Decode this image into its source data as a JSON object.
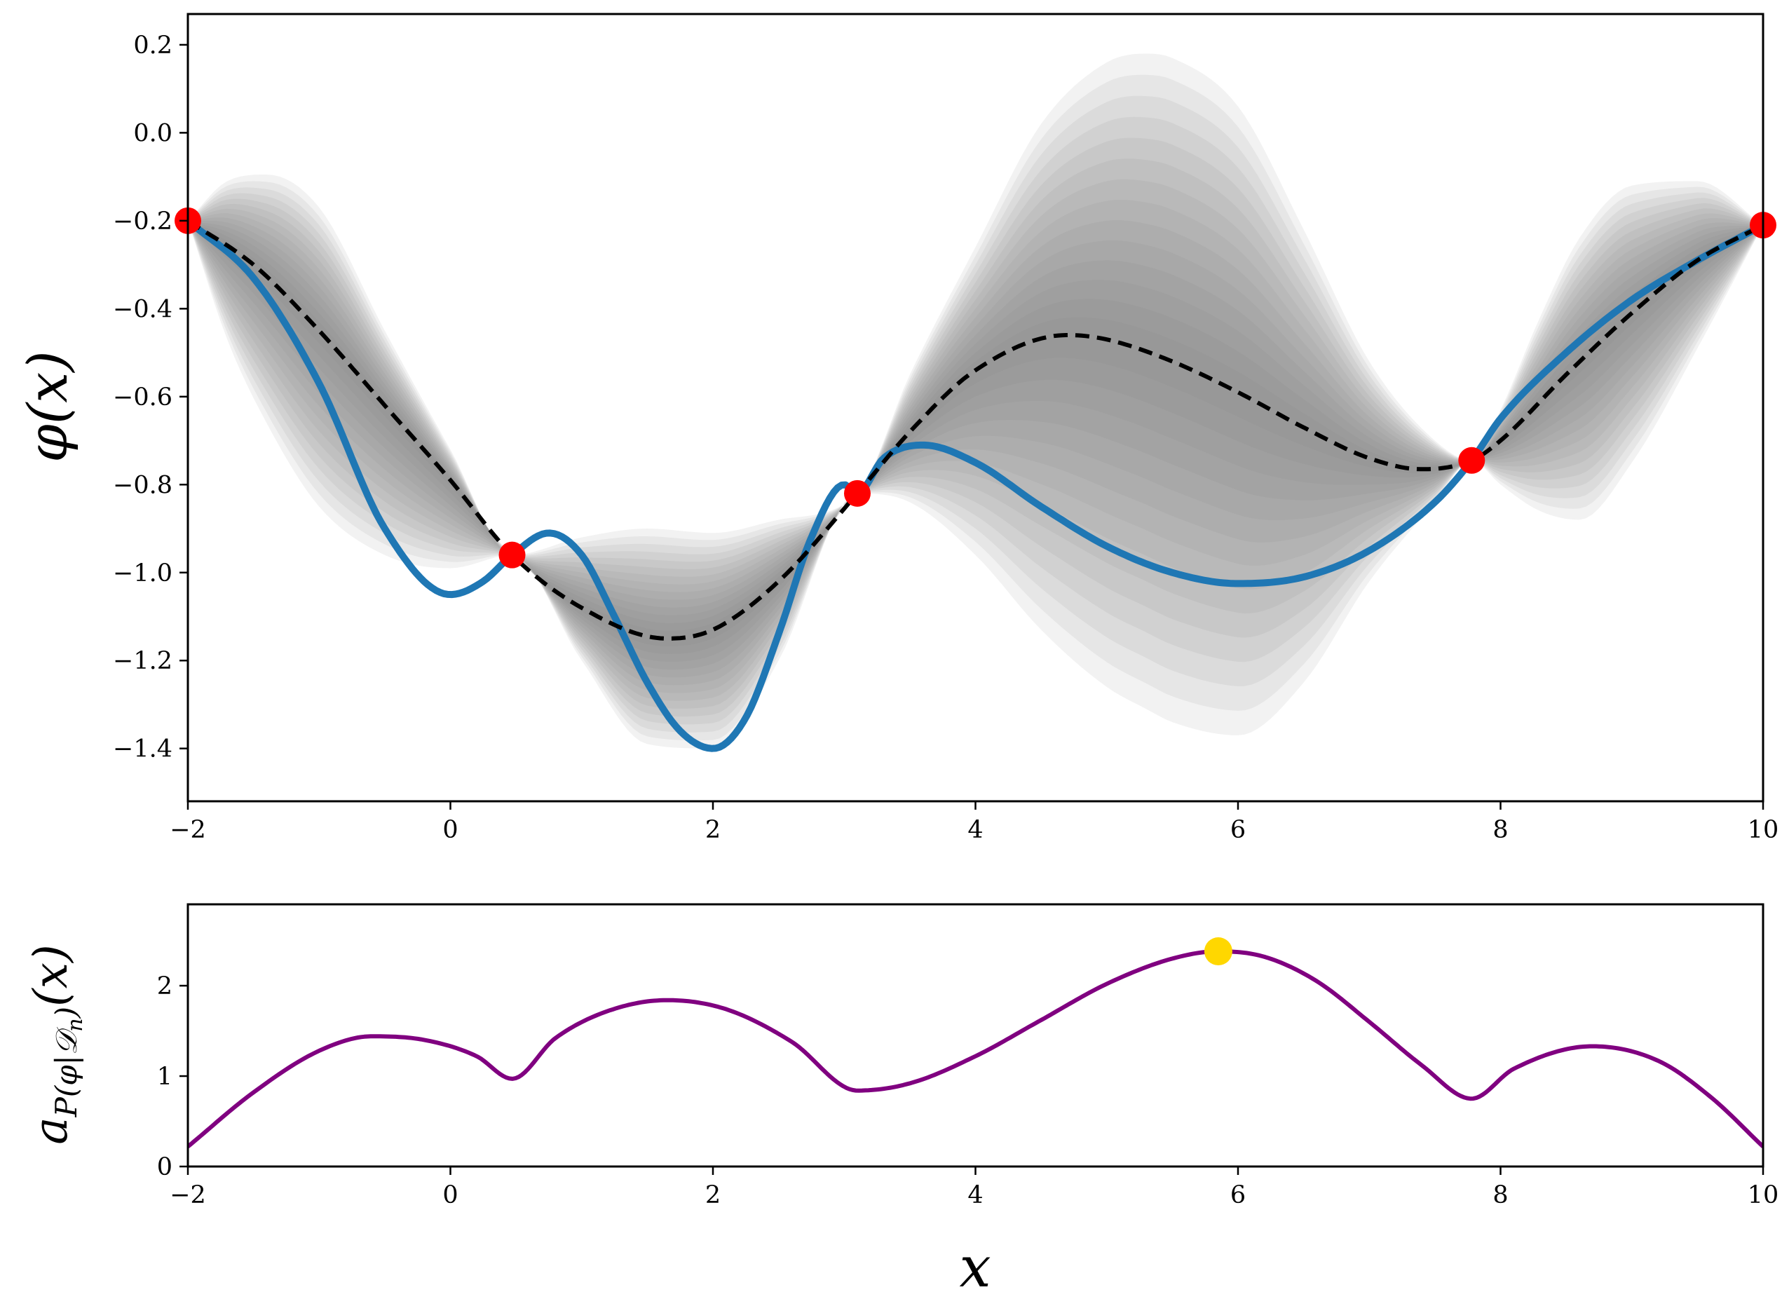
{
  "chart_data": [
    {
      "type": "line",
      "title": "",
      "xlabel": "",
      "ylabel": "φ(x)",
      "xlim": [
        -2,
        10
      ],
      "ylim": [
        -1.52,
        0.27
      ],
      "xticks": [
        "−2",
        "0",
        "2",
        "4",
        "6",
        "8",
        "10"
      ],
      "xtick_values": [
        -2,
        0,
        2,
        4,
        6,
        8,
        10
      ],
      "yticks": [
        "−1.4",
        "−1.2",
        "−1.0",
        "−0.8",
        "−0.6",
        "−0.4",
        "−0.2",
        "0.0",
        "0.2"
      ],
      "ytick_values": [
        -1.4,
        -1.2,
        -1.0,
        -0.8,
        -0.6,
        -0.4,
        -0.2,
        0.0,
        0.2
      ],
      "grid": false,
      "legend": "none",
      "colors": {
        "true_function": "#1f77b4",
        "posterior_mean": "#000000",
        "observations": "#ff0000",
        "uncertainty_band": "#808080"
      },
      "series": [
        {
          "role": "true_function",
          "x": [
            -2.0,
            -1.5,
            -1.0,
            -0.5,
            0.0,
            0.25,
            0.47,
            0.75,
            1.0,
            1.25,
            1.5,
            1.75,
            2.0,
            2.25,
            2.5,
            2.75,
            3.0,
            3.1,
            3.3,
            3.6,
            4.0,
            4.5,
            5.0,
            5.5,
            6.0,
            6.5,
            7.0,
            7.5,
            7.78,
            8.0,
            8.5,
            9.0,
            9.5,
            10.0
          ],
          "y": [
            -0.2,
            -0.33,
            -0.57,
            -0.9,
            -1.05,
            -1.02,
            -0.96,
            -0.91,
            -0.96,
            -1.1,
            -1.25,
            -1.36,
            -1.4,
            -1.33,
            -1.14,
            -0.92,
            -0.8,
            -0.82,
            -0.74,
            -0.71,
            -0.75,
            -0.85,
            -0.94,
            -1.0,
            -1.025,
            -1.01,
            -0.95,
            -0.84,
            -0.745,
            -0.65,
            -0.5,
            -0.38,
            -0.29,
            -0.21
          ]
        },
        {
          "role": "posterior_mean",
          "x": [
            -2.0,
            -1.5,
            -1.0,
            -0.5,
            0.0,
            0.47,
            1.0,
            1.65,
            2.0,
            2.5,
            3.1,
            3.5,
            4.0,
            4.7,
            5.0,
            5.5,
            6.0,
            6.5,
            7.0,
            7.4,
            7.78,
            8.0,
            8.5,
            9.0,
            9.5,
            10.0
          ],
          "y": [
            -0.2,
            -0.3,
            -0.45,
            -0.62,
            -0.79,
            -0.96,
            -1.08,
            -1.15,
            -1.13,
            -1.02,
            -0.82,
            -0.68,
            -0.54,
            -0.46,
            -0.47,
            -0.52,
            -0.59,
            -0.67,
            -0.74,
            -0.765,
            -0.745,
            -0.7,
            -0.55,
            -0.41,
            -0.29,
            -0.21
          ]
        },
        {
          "role": "uncertainty_band",
          "x": [
            -2.0,
            -1.7,
            -1.4,
            -1.0,
            -0.5,
            0.0,
            0.47,
            1.0,
            1.5,
            2.0,
            2.5,
            3.1,
            3.5,
            4.0,
            4.5,
            5.0,
            5.3,
            5.5,
            6.0,
            6.5,
            7.0,
            7.5,
            7.78,
            8.0,
            8.3,
            8.6,
            9.0,
            9.5,
            10.0
          ],
          "upper": [
            -0.2,
            -0.11,
            -0.095,
            -0.17,
            -0.45,
            -0.72,
            -0.96,
            -0.92,
            -0.9,
            -0.91,
            -0.88,
            -0.82,
            -0.55,
            -0.26,
            0.02,
            0.16,
            0.18,
            0.17,
            0.06,
            -0.22,
            -0.52,
            -0.7,
            -0.745,
            -0.63,
            -0.42,
            -0.24,
            -0.12,
            -0.11,
            -0.21
          ],
          "lower": [
            -0.2,
            -0.47,
            -0.66,
            -0.85,
            -0.96,
            -0.99,
            -0.96,
            -1.2,
            -1.39,
            -1.4,
            -1.2,
            -0.82,
            -0.84,
            -0.96,
            -1.13,
            -1.26,
            -1.31,
            -1.34,
            -1.37,
            -1.25,
            -1.02,
            -0.84,
            -0.745,
            -0.8,
            -0.86,
            -0.88,
            -0.75,
            -0.49,
            -0.21
          ]
        },
        {
          "role": "observations",
          "x": [
            -2.0,
            0.47,
            3.1,
            7.78,
            10.0
          ],
          "y": [
            -0.2,
            -0.96,
            -0.82,
            -0.745,
            -0.21
          ]
        }
      ]
    },
    {
      "type": "line",
      "title": "",
      "xlabel": "x",
      "ylabel": "a_{P(φ|𝒟_n)}(x)",
      "xlim": [
        -2,
        10
      ],
      "ylim": [
        0,
        2.9
      ],
      "xticks": [
        "−2",
        "0",
        "2",
        "4",
        "6",
        "8",
        "10"
      ],
      "xtick_values": [
        -2,
        0,
        2,
        4,
        6,
        8,
        10
      ],
      "yticks": [
        "0",
        "1",
        "2"
      ],
      "ytick_values": [
        0,
        1,
        2
      ],
      "grid": false,
      "legend": "none",
      "colors": {
        "acquisition": "#800080",
        "maximizer": "#ffd700"
      },
      "series": [
        {
          "role": "acquisition",
          "x": [
            -2.0,
            -1.5,
            -1.0,
            -0.6,
            -0.2,
            0.2,
            0.47,
            0.8,
            1.2,
            1.65,
            2.1,
            2.6,
            3.1,
            3.5,
            4.0,
            4.5,
            5.0,
            5.5,
            5.85,
            6.2,
            6.6,
            7.0,
            7.4,
            7.78,
            8.1,
            8.7,
            9.2,
            9.6,
            10.0
          ],
          "y": [
            0.22,
            0.82,
            1.28,
            1.44,
            1.4,
            1.22,
            0.97,
            1.42,
            1.72,
            1.84,
            1.74,
            1.38,
            0.84,
            0.92,
            1.22,
            1.62,
            2.02,
            2.3,
            2.38,
            2.32,
            2.05,
            1.6,
            1.12,
            0.75,
            1.08,
            1.33,
            1.17,
            0.77,
            0.22
          ]
        },
        {
          "role": "maximizer",
          "x": [
            5.85
          ],
          "y": [
            2.38
          ]
        }
      ]
    }
  ]
}
